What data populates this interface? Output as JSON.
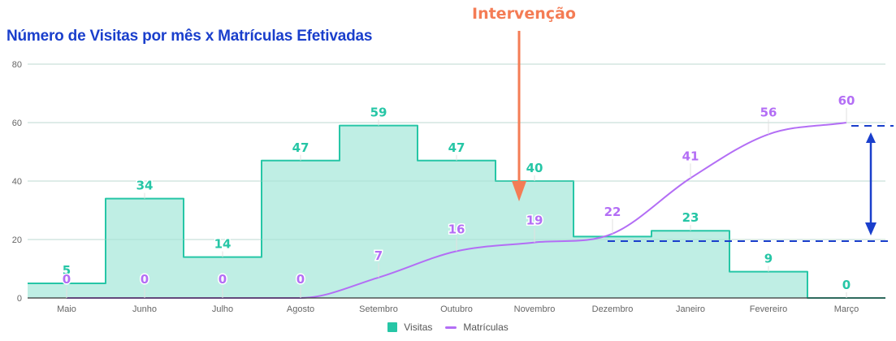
{
  "title": "Número de Visitas por mês x Matrículas Efetivadas",
  "annotation": {
    "label": "Intervenção",
    "position_category": "Novembro",
    "color": "#f47c55"
  },
  "colors": {
    "title": "#1a3fcc",
    "visitas_line": "#26c6a6",
    "visitas_fill": "#bfeee4",
    "matriculas_line": "#b36ef5",
    "gridline": "#dddddd",
    "axis_text": "#666666",
    "dashed_marker": "#1a3fcc"
  },
  "legend": {
    "items": [
      {
        "label": "Visitas",
        "type": "box"
      },
      {
        "label": "Matrículas",
        "type": "line"
      }
    ]
  },
  "chart_data": {
    "type": "area",
    "title": "Número de Visitas por mês x Matrículas Efetivadas",
    "xlabel": "",
    "ylabel": "",
    "ylim": [
      0,
      80
    ],
    "yticks": [
      0,
      20,
      40,
      60,
      80
    ],
    "grid": true,
    "legend_position": "bottom",
    "categories": [
      "Maio",
      "Junho",
      "Julho",
      "Agosto",
      "Setembro",
      "Outubro",
      "Novembro",
      "Dezembro",
      "Janeiro",
      "Fevereiro",
      "Março"
    ],
    "series": [
      {
        "name": "Visitas",
        "type": "stepped-area",
        "values": [
          5,
          34,
          14,
          47,
          59,
          47,
          40,
          21,
          23,
          9,
          0
        ],
        "labels": [
          "5",
          "34",
          "14",
          "47",
          "59",
          "47",
          "40",
          "",
          "23",
          "9",
          "0"
        ]
      },
      {
        "name": "Matrículas",
        "type": "smooth-line",
        "values": [
          0,
          0,
          0,
          0,
          7,
          16,
          19,
          22,
          41,
          56,
          60
        ],
        "labels": [
          "0",
          "0",
          "0",
          "0",
          "7",
          "16",
          "19",
          "22",
          "41",
          "56",
          "60"
        ]
      }
    ],
    "annotations": [
      {
        "type": "arrow-down",
        "text": "Intervenção",
        "x_category": "Novembro"
      },
      {
        "type": "dashed-hline",
        "y": 19,
        "from_category": "Dezembro"
      },
      {
        "type": "dashed-hline",
        "y": 59,
        "from_category": "Março"
      },
      {
        "type": "double-arrow",
        "from_y": 19,
        "to_y": 59,
        "note": "growth range indicator"
      }
    ]
  }
}
